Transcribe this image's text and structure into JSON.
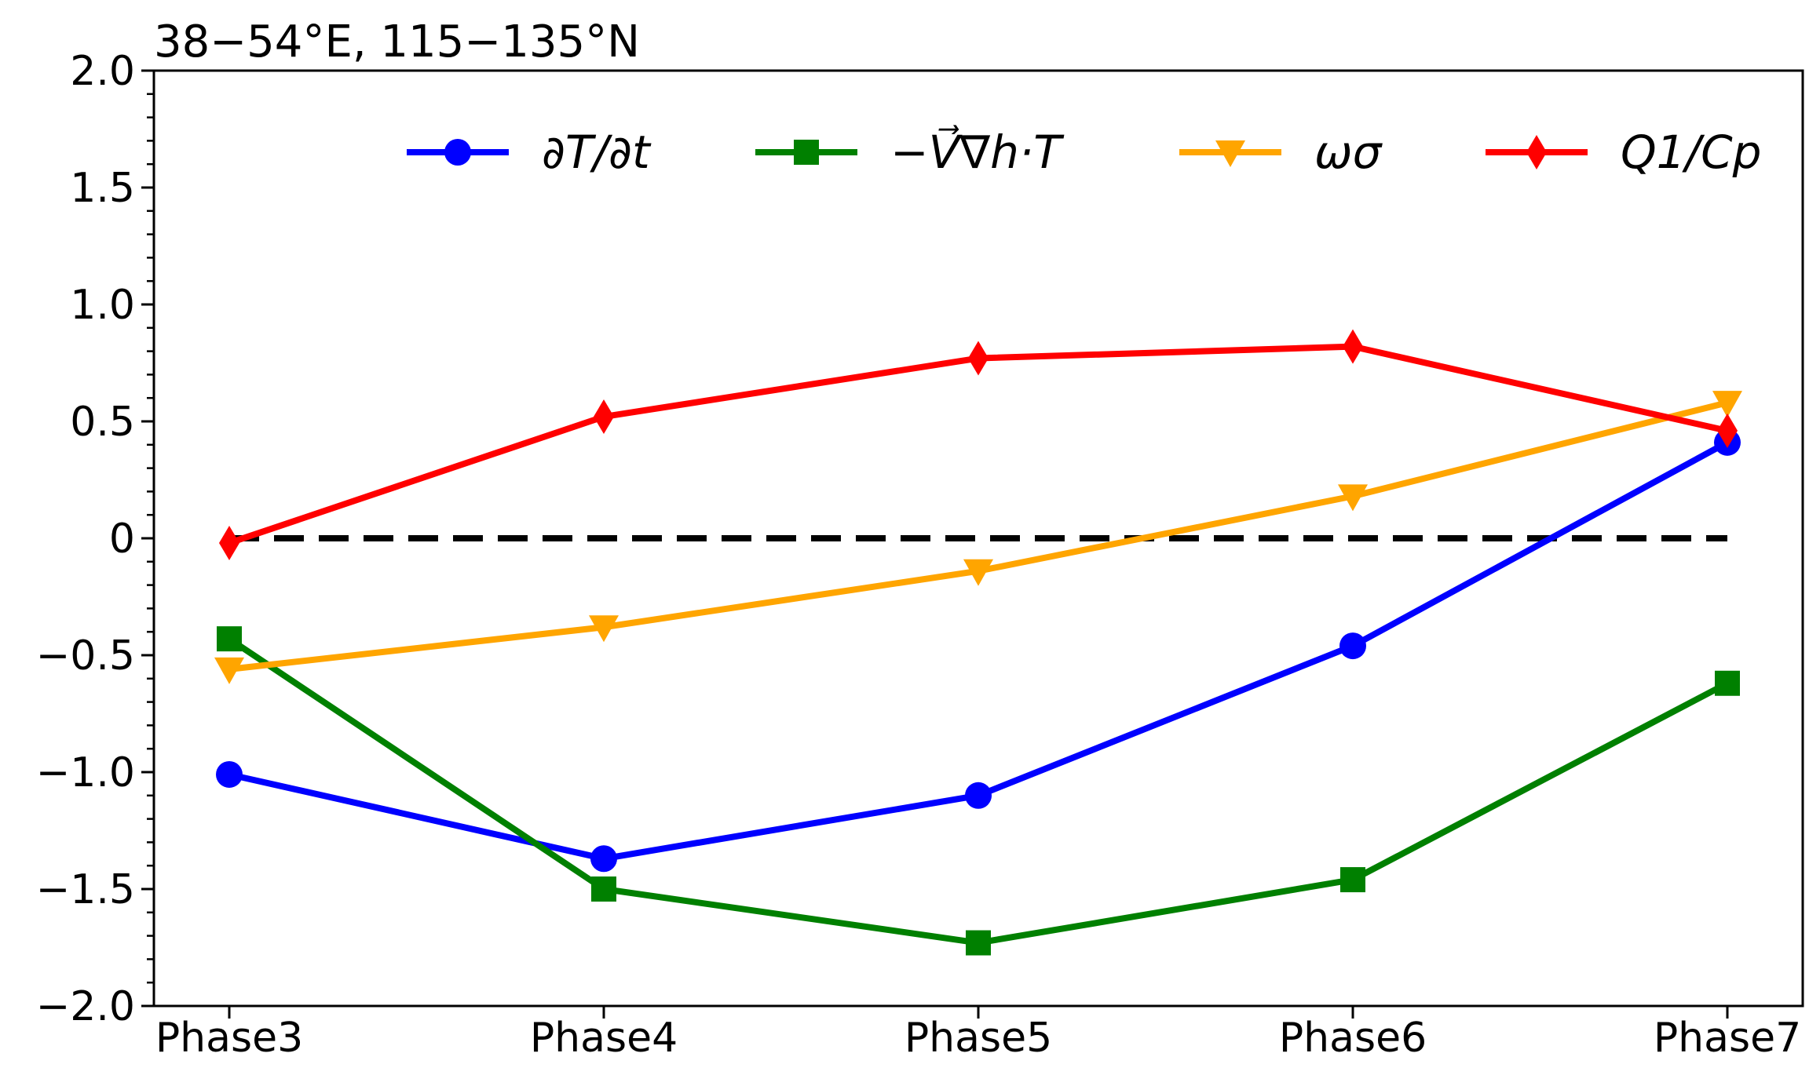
{
  "chart_data": {
    "type": "line",
    "title": "38−54°E, 115−135°N",
    "xlabel": "",
    "ylabel": "",
    "categories": [
      "Phase3",
      "Phase4",
      "Phase5",
      "Phase6",
      "Phase7"
    ],
    "ylim": [
      -2.0,
      2.0
    ],
    "yticks": [
      -2.0,
      -1.5,
      -1.0,
      -0.5,
      0,
      0.5,
      1.0,
      1.5,
      2.0
    ],
    "ytick_labels": [
      "−2.0",
      "−1.5",
      "−1.0",
      "−0.5",
      "0",
      "0.5",
      "1.0",
      "1.5",
      "2.0"
    ],
    "grid": false,
    "legend_position": "top-right",
    "zero_line": {
      "value": 0,
      "style": "dashed",
      "color": "#000000"
    },
    "series": [
      {
        "name": "∂T/∂t",
        "color": "#0000ff",
        "marker": "circle",
        "values": [
          -1.01,
          -1.37,
          -1.1,
          -0.46,
          0.41
        ]
      },
      {
        "name": "−V⃗∇h·T",
        "color": "#008000",
        "marker": "square",
        "values": [
          -0.43,
          -1.5,
          -1.73,
          -1.46,
          -0.62
        ]
      },
      {
        "name": "ωσ",
        "color": "#ffa500",
        "marker": "triangle-down",
        "values": [
          -0.56,
          -0.38,
          -0.14,
          0.18,
          0.58
        ]
      },
      {
        "name": "Q1/Cp",
        "color": "#ff0000",
        "marker": "diamond",
        "values": [
          -0.02,
          0.52,
          0.77,
          0.82,
          0.46
        ]
      }
    ]
  }
}
